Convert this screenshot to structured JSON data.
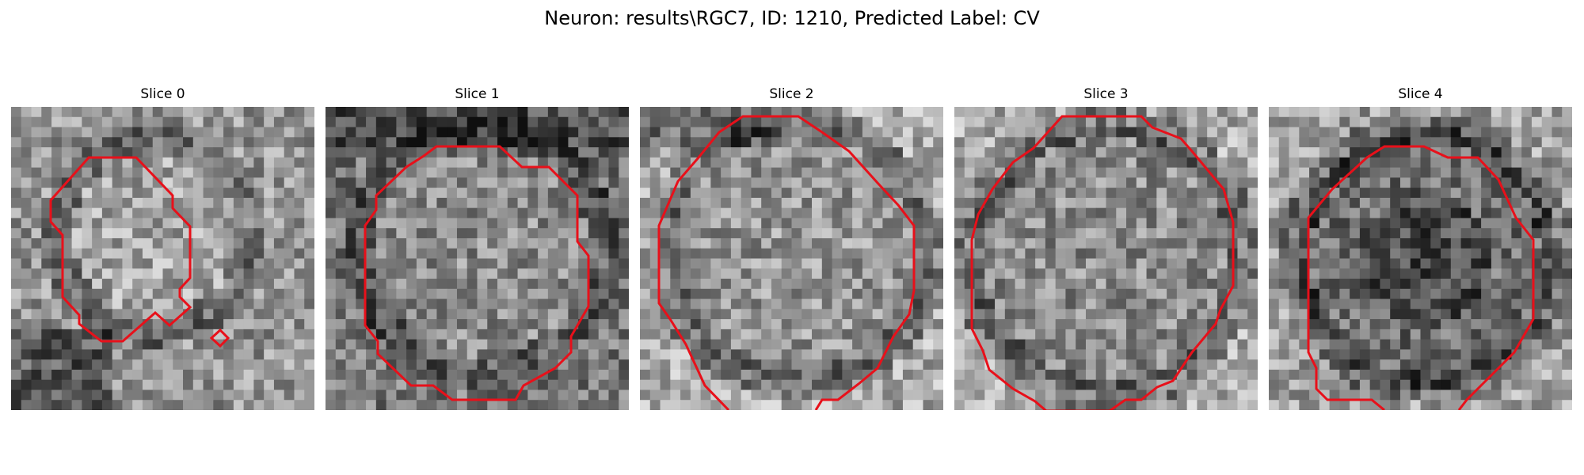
{
  "figure": {
    "title": "Neuron: results\\RGC7, ID: 1210, Predicted Label: CV",
    "contour_color": "#e8101a",
    "colormap": "grayscale",
    "grid": {
      "rows": 30,
      "cols": 30
    }
  },
  "panels": [
    {
      "title": "Slice 0"
    },
    {
      "title": "Slice 1"
    },
    {
      "title": "Slice 2"
    },
    {
      "title": "Slice 3"
    },
    {
      "title": "Slice 4"
    }
  ]
}
